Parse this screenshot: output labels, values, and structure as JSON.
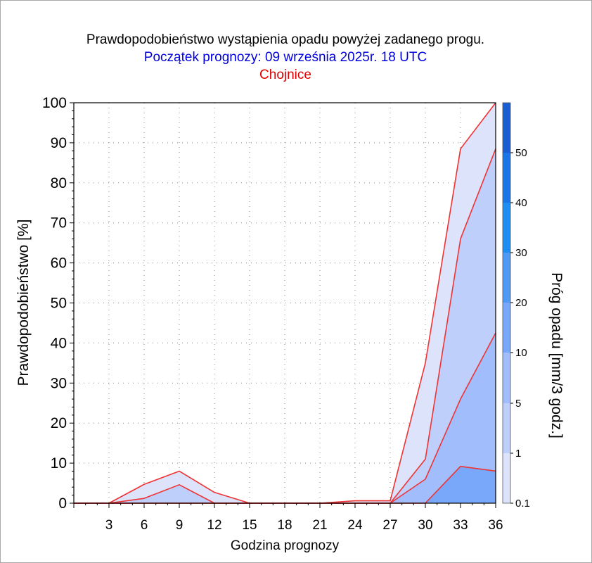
{
  "chart_data": {
    "type": "area",
    "title": "Prawdopodobieństwo wystąpienia opadu powyżej zadanego progu.",
    "subtitle": "Początek prognozy: 09 września 2025r. 18 UTC",
    "location": "Chojnice",
    "xlabel": "Godzina prognozy",
    "ylabel": "Prawdopodobieństwo [%]",
    "xlim": [
      0,
      36
    ],
    "ylim": [
      0,
      100
    ],
    "x_ticks": [
      "3",
      "6",
      "9",
      "12",
      "15",
      "18",
      "21",
      "24",
      "27",
      "30",
      "33",
      "36"
    ],
    "y_ticks": [
      "0",
      "10",
      "20",
      "30",
      "40",
      "50",
      "60",
      "70",
      "80",
      "90",
      "100"
    ],
    "grid": true,
    "x": [
      0,
      3,
      6,
      9,
      12,
      15,
      18,
      21,
      24,
      27,
      30,
      33,
      36
    ],
    "series": [
      {
        "threshold": 0.1,
        "color": "#dde3fb",
        "values": [
          0,
          0,
          4.7,
          8,
          2.7,
          0,
          0,
          0,
          0.6,
          0.6,
          35,
          88.5,
          100
        ]
      },
      {
        "threshold": 1,
        "color": "#bfcffb",
        "values": [
          0,
          0,
          1.2,
          4.6,
          0,
          0,
          0,
          0,
          0,
          0,
          11,
          66,
          88.5
        ]
      },
      {
        "threshold": 5,
        "color": "#a1bdfc",
        "values": [
          0,
          0,
          0,
          0,
          0,
          0,
          0,
          0,
          0,
          0,
          6,
          26,
          42.5
        ]
      },
      {
        "threshold": 10,
        "color": "#79a8fa",
        "values": [
          0,
          0,
          0,
          0,
          0,
          0,
          0,
          0,
          0,
          0,
          0,
          9.2,
          8
        ]
      }
    ],
    "line_color": "#ee3333",
    "colorbar": {
      "label": "Próg opadu [mm/3 godz.]",
      "ticks": [
        "0.1",
        "1",
        "5",
        "10",
        "20",
        "30",
        "40",
        "50"
      ],
      "colors": [
        "#dde3fb",
        "#bfcffb",
        "#a1bdfc",
        "#79a8fa",
        "#509af6",
        "#1f8ef2",
        "#1a76e6",
        "#1a5fd2",
        "#1347b8"
      ]
    }
  }
}
